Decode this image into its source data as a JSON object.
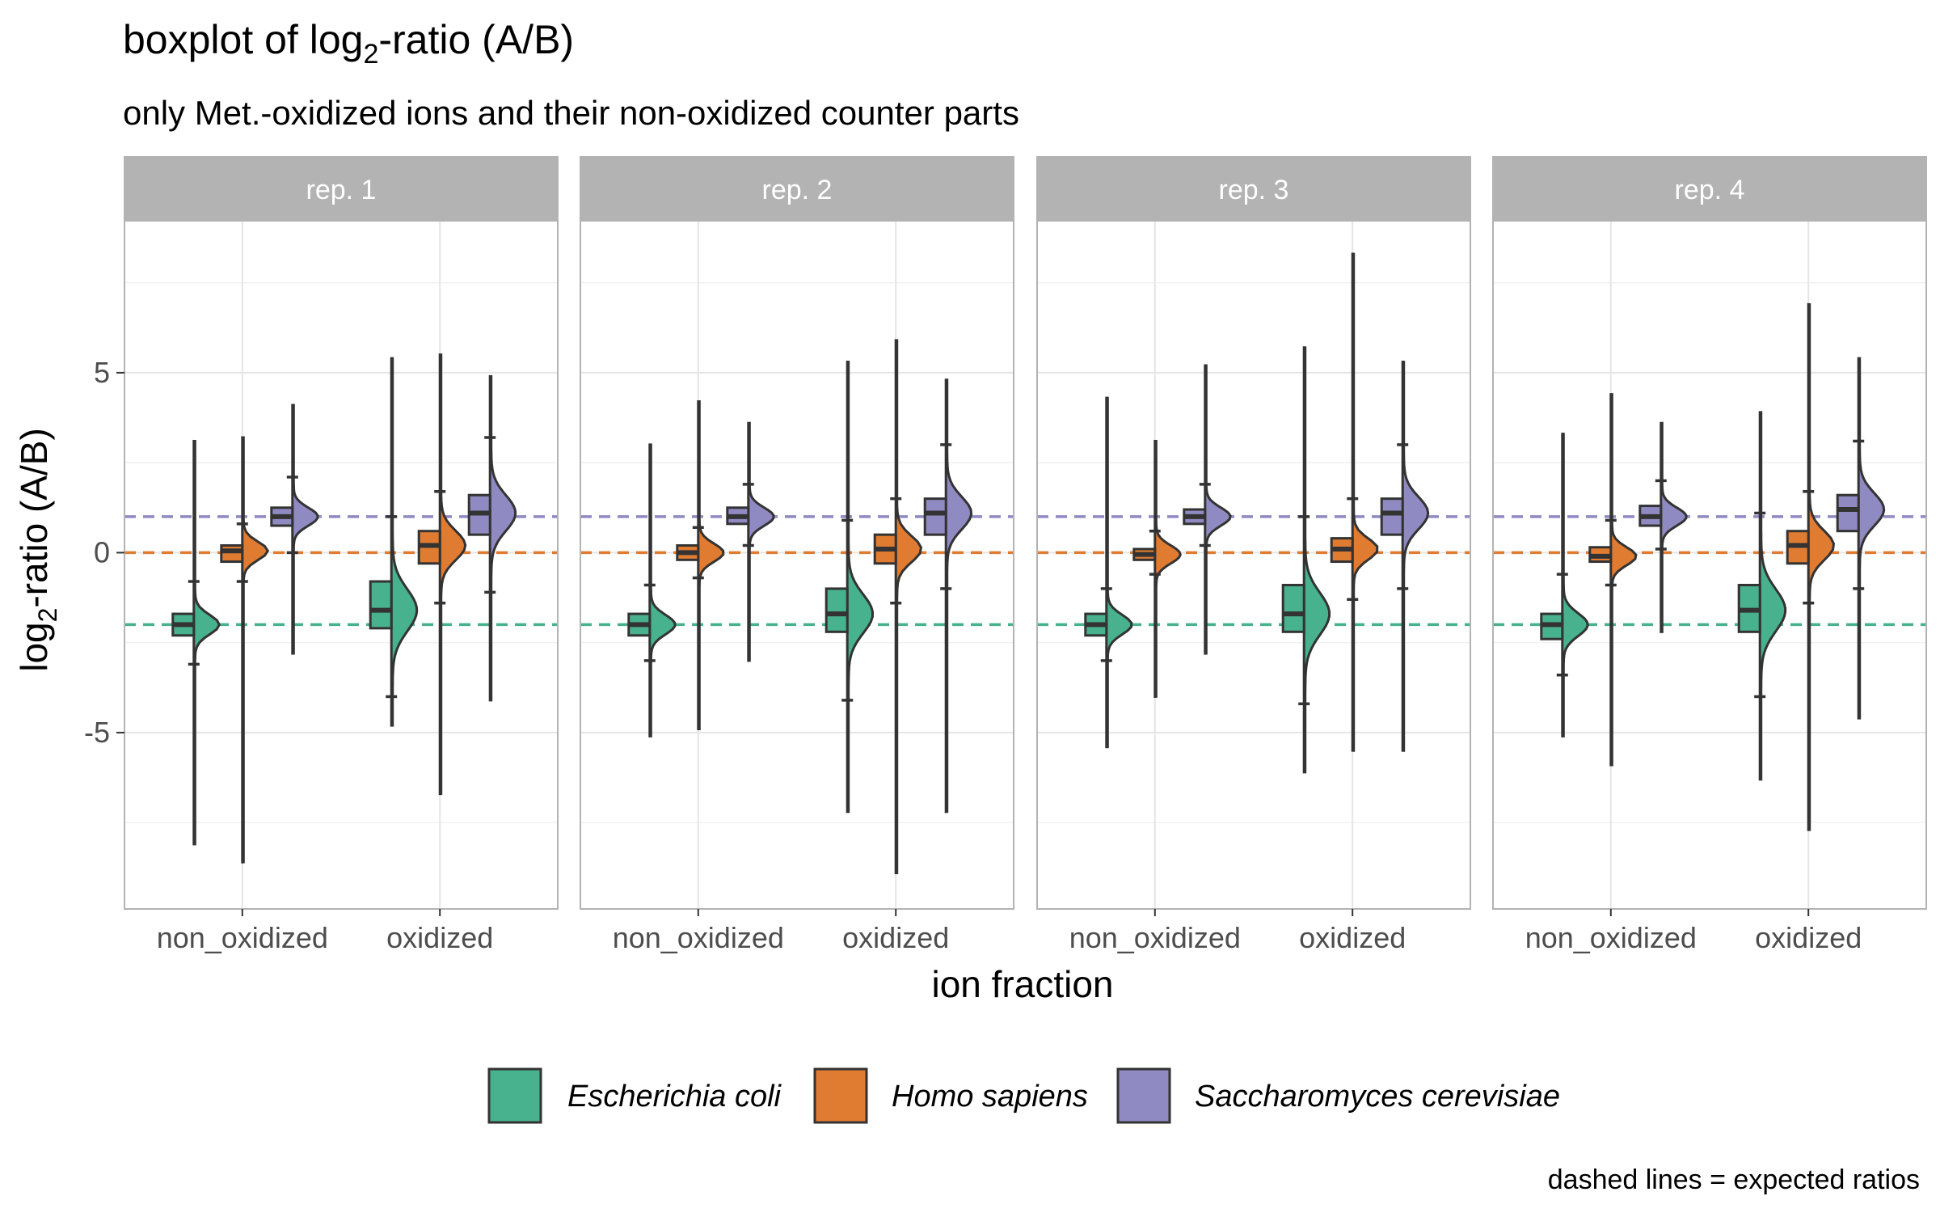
{
  "chart_data": {
    "type": "boxplot",
    "subtype": "half-violin + boxplot, faceted",
    "title": {
      "prefix": "boxplot of ",
      "log": "log",
      "base": "2",
      "suffix": "-ratio (A/B)"
    },
    "subtitle": "only Met.-oxidized ions and their non-oxidized counter parts",
    "ylabel": {
      "log": "log",
      "base": "2",
      "suffix": "-ratio (A/B)"
    },
    "xlabel": "ion fraction",
    "caption": "dashed lines = expected ratios",
    "ylim": [
      -9.9,
      9.2
    ],
    "yticks": [
      -5,
      0,
      5
    ],
    "ytick_labels": [
      "-5",
      "0",
      "5"
    ],
    "categories": [
      "non_oxidized",
      "oxidized"
    ],
    "facets": [
      "rep. 1",
      "rep. 2",
      "rep. 3",
      "rep. 4"
    ],
    "series": [
      {
        "name": "Escherichia coli",
        "color": "#48B18E",
        "expected": -2
      },
      {
        "name": "Homo sapiens",
        "color": "#E07C32",
        "expected": 0
      },
      {
        "name": "Saccharomyces cerevisiae",
        "color": "#8F8AC2",
        "expected": 1
      }
    ],
    "line_color": "#333333",
    "data": [
      {
        "facet": "rep. 1",
        "non_oxidized": [
          {
            "q1": -2.3,
            "median": -2.0,
            "q3": -1.7,
            "lw": -3.1,
            "uw": -0.8,
            "min": -8.1,
            "max": 3.1
          },
          {
            "q1": -0.25,
            "median": 0.05,
            "q3": 0.2,
            "lw": -0.8,
            "uw": 0.8,
            "min": -8.6,
            "max": 3.2
          },
          {
            "q1": 0.75,
            "median": 1.0,
            "q3": 1.25,
            "lw": 0.0,
            "uw": 2.1,
            "min": -2.8,
            "max": 4.1
          }
        ],
        "oxidized": [
          {
            "q1": -2.1,
            "median": -1.6,
            "q3": -0.8,
            "lw": -4.0,
            "uw": 1.0,
            "min": -4.8,
            "max": 5.4
          },
          {
            "q1": -0.3,
            "median": 0.2,
            "q3": 0.6,
            "lw": -1.4,
            "uw": 1.7,
            "min": -6.7,
            "max": 5.5
          },
          {
            "q1": 0.5,
            "median": 1.1,
            "q3": 1.6,
            "lw": -1.1,
            "uw": 3.2,
            "min": -4.1,
            "max": 4.9
          }
        ]
      },
      {
        "facet": "rep. 2",
        "non_oxidized": [
          {
            "q1": -2.3,
            "median": -2.0,
            "q3": -1.7,
            "lw": -3.0,
            "uw": -0.9,
            "min": -5.1,
            "max": 3.0
          },
          {
            "q1": -0.2,
            "median": 0.0,
            "q3": 0.2,
            "lw": -0.7,
            "uw": 0.7,
            "min": -4.9,
            "max": 4.2
          },
          {
            "q1": 0.8,
            "median": 1.0,
            "q3": 1.25,
            "lw": 0.2,
            "uw": 1.9,
            "min": -3.0,
            "max": 3.6
          }
        ],
        "oxidized": [
          {
            "q1": -2.2,
            "median": -1.7,
            "q3": -1.0,
            "lw": -4.1,
            "uw": 0.9,
            "min": -7.2,
            "max": 5.3
          },
          {
            "q1": -0.3,
            "median": 0.1,
            "q3": 0.5,
            "lw": -1.4,
            "uw": 1.5,
            "min": -8.9,
            "max": 5.9
          },
          {
            "q1": 0.5,
            "median": 1.1,
            "q3": 1.5,
            "lw": -1.0,
            "uw": 3.0,
            "min": -7.2,
            "max": 4.8
          }
        ]
      },
      {
        "facet": "rep. 3",
        "non_oxidized": [
          {
            "q1": -2.3,
            "median": -2.0,
            "q3": -1.7,
            "lw": -3.0,
            "uw": -1.0,
            "min": -5.4,
            "max": 4.3
          },
          {
            "q1": -0.2,
            "median": -0.05,
            "q3": 0.1,
            "lw": -0.6,
            "uw": 0.6,
            "min": -4.0,
            "max": 3.1
          },
          {
            "q1": 0.8,
            "median": 1.0,
            "q3": 1.2,
            "lw": 0.2,
            "uw": 1.9,
            "min": -2.8,
            "max": 5.2
          }
        ],
        "oxidized": [
          {
            "q1": -2.2,
            "median": -1.7,
            "q3": -0.9,
            "lw": -4.2,
            "uw": 1.0,
            "min": -6.1,
            "max": 5.7
          },
          {
            "q1": -0.25,
            "median": 0.1,
            "q3": 0.4,
            "lw": -1.3,
            "uw": 1.5,
            "min": -5.5,
            "max": 8.3
          },
          {
            "q1": 0.5,
            "median": 1.1,
            "q3": 1.5,
            "lw": -1.0,
            "uw": 3.0,
            "min": -5.5,
            "max": 5.3
          }
        ]
      },
      {
        "facet": "rep. 4",
        "non_oxidized": [
          {
            "q1": -2.4,
            "median": -2.0,
            "q3": -1.7,
            "lw": -3.4,
            "uw": -0.6,
            "min": -5.1,
            "max": 3.3
          },
          {
            "q1": -0.25,
            "median": -0.1,
            "q3": 0.15,
            "lw": -0.9,
            "uw": 0.9,
            "min": -5.9,
            "max": 4.4
          },
          {
            "q1": 0.75,
            "median": 1.0,
            "q3": 1.3,
            "lw": 0.1,
            "uw": 2.0,
            "min": -2.2,
            "max": 3.6
          }
        ],
        "oxidized": [
          {
            "q1": -2.2,
            "median": -1.6,
            "q3": -0.9,
            "lw": -4.0,
            "uw": 1.1,
            "min": -6.3,
            "max": 3.9
          },
          {
            "q1": -0.3,
            "median": 0.2,
            "q3": 0.6,
            "lw": -1.4,
            "uw": 1.7,
            "min": -7.7,
            "max": 6.9
          },
          {
            "q1": 0.6,
            "median": 1.2,
            "q3": 1.6,
            "lw": -1.0,
            "uw": 3.1,
            "min": -4.6,
            "max": 5.4
          }
        ]
      }
    ]
  }
}
